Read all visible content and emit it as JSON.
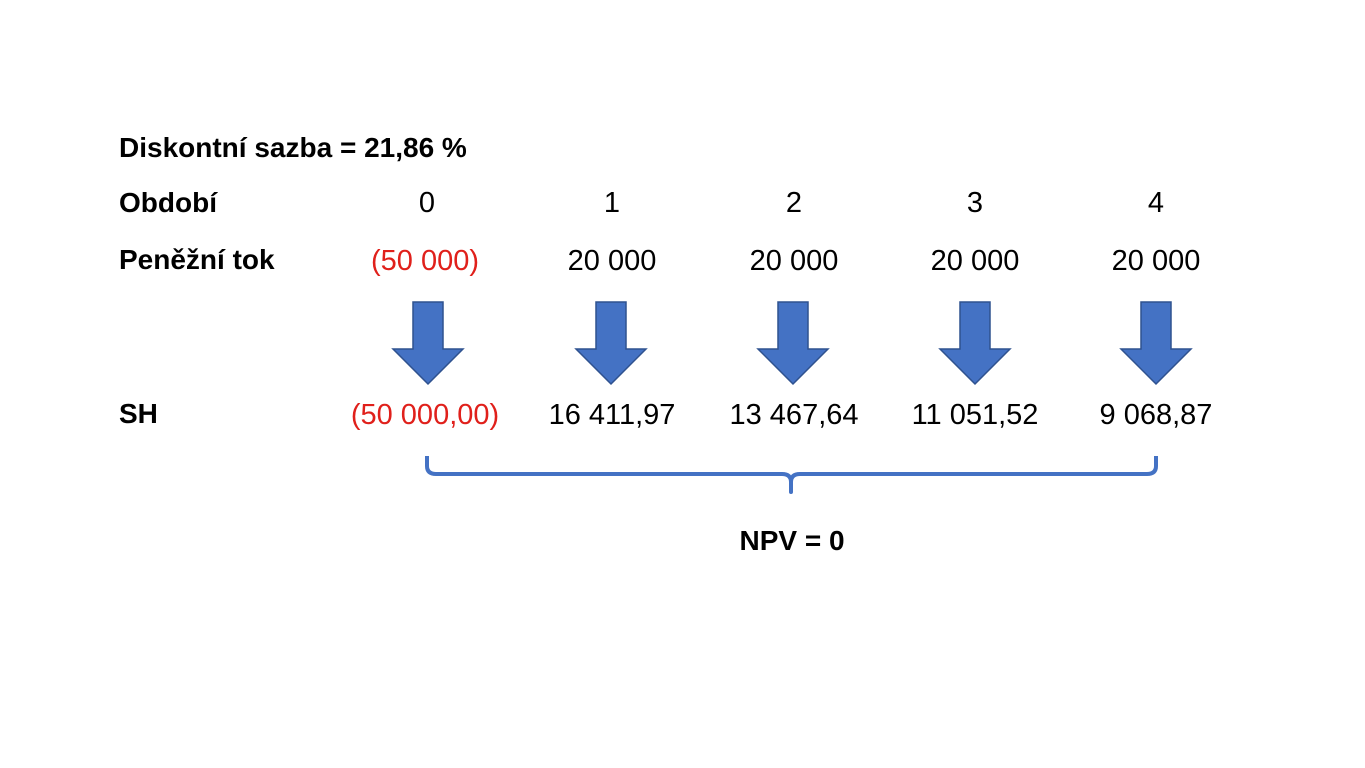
{
  "discount_rate_label": "Diskontní sazba = 21,86 %",
  "rows": {
    "period_label": "Období",
    "cash_flow_label": "Peněžní tok",
    "pv_label": "SH"
  },
  "periods": [
    "0",
    "1",
    "2",
    "3",
    "4"
  ],
  "cash_flows": [
    "(50 000)",
    "20 000",
    "20 000",
    "20 000",
    "20 000"
  ],
  "present_values": [
    "(50 000,00)",
    "16 411,97",
    "13 467,64",
    "11 051,52",
    "9 068,87"
  ],
  "npv_label": "NPV = 0",
  "colors": {
    "negative": "#e0201b",
    "arrow_fill": "#4472c4",
    "arrow_stroke": "#2f528f",
    "brace": "#4472c4"
  },
  "icons": {
    "arrow": "arrow-down-icon",
    "brace": "curly-brace"
  }
}
